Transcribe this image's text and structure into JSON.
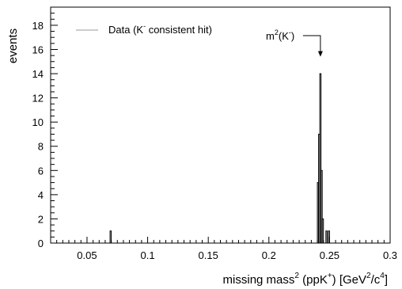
{
  "chart_data": {
    "type": "bar",
    "subtype": "histogram",
    "xlabel_parts": {
      "base": "missing mass",
      "base_sup": "2",
      "mid": " (ppK",
      "mid_sup": "+",
      "units_open": ")  [GeV",
      "units_sup1": "2",
      "units_mid": "/c",
      "units_sup2": "4",
      "units_close": "]"
    },
    "ylabel": "events",
    "xlim": [
      0.02,
      0.3
    ],
    "ylim": [
      0,
      19.5
    ],
    "xticks": [
      0.05,
      0.1,
      0.15,
      0.2,
      0.25,
      0.3
    ],
    "xtick_labels": [
      "0.05",
      "0.1",
      "0.15",
      "0.2",
      "0.25",
      "0.3"
    ],
    "yticks": [
      0,
      2,
      4,
      6,
      8,
      10,
      12,
      14,
      16,
      18
    ],
    "ytick_labels": [
      "0",
      "2",
      "4",
      "6",
      "8",
      "10",
      "12",
      "14",
      "16",
      "18"
    ],
    "bin_width": 0.001,
    "bins": [
      {
        "x": 0.0695,
        "value": 1
      },
      {
        "x": 0.2405,
        "value": 5
      },
      {
        "x": 0.2415,
        "value": 9
      },
      {
        "x": 0.2425,
        "value": 14
      },
      {
        "x": 0.2435,
        "value": 6
      },
      {
        "x": 0.2445,
        "value": 2
      },
      {
        "x": 0.2475,
        "value": 1
      },
      {
        "x": 0.2495,
        "value": 1
      }
    ],
    "fill_color": "#d6d6d6",
    "line_color": "#000000",
    "legend": {
      "placement": "top-left",
      "text": "Data (K",
      "text_sup": "-",
      "text_tail": " consistent hit)",
      "line_color": "#999999"
    },
    "annotation": {
      "text": "m",
      "sup": "2",
      "tail": "(K",
      "tail_sup": "-",
      "close": ")",
      "target_x": 0.2425,
      "target_y": 15.4
    },
    "grid": false
  }
}
